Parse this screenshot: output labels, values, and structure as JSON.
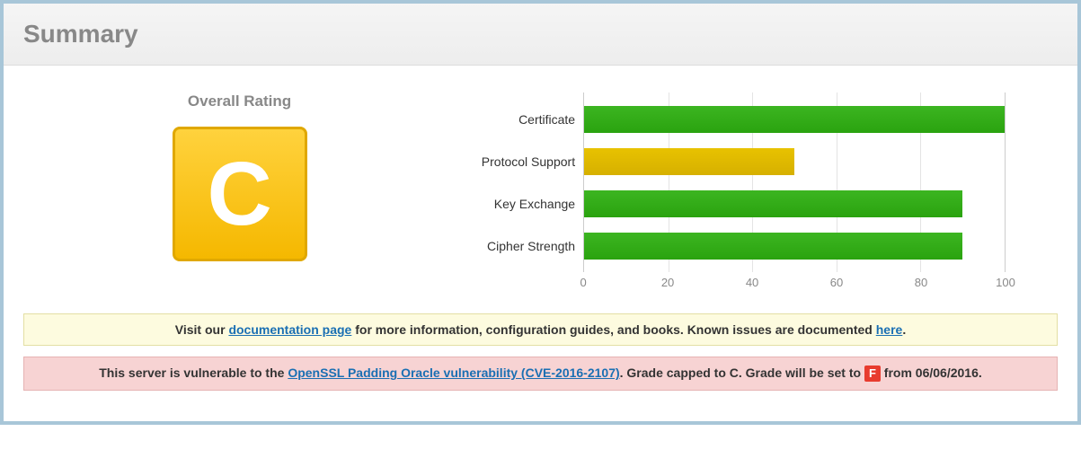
{
  "header": {
    "title": "Summary"
  },
  "rating": {
    "title": "Overall Rating",
    "grade": "C",
    "grade_bg_top": "#ffd23d",
    "grade_bg_bottom": "#f5b800",
    "grade_border": "#e0a800",
    "grade_text_color": "#ffffff"
  },
  "chart": {
    "type": "bar",
    "xlim": [
      0,
      100
    ],
    "ticks": [
      0,
      20,
      40,
      60,
      80,
      100
    ],
    "grid_color": "#e4e4e4",
    "axis_color": "#cccccc",
    "rows": [
      {
        "label": "Certificate",
        "value": 100,
        "color": "#3cb521"
      },
      {
        "label": "Protocol Support",
        "value": 50,
        "color": "#e8c200"
      },
      {
        "label": "Key Exchange",
        "value": 90,
        "color": "#3cb521"
      },
      {
        "label": "Cipher Strength",
        "value": 90,
        "color": "#3cb521"
      }
    ]
  },
  "notices": {
    "info": {
      "t1": "Visit our ",
      "link1_text": "documentation page",
      "t2": " for more information, configuration guides, and books. Known issues are documented ",
      "link2_text": "here",
      "t3": "."
    },
    "warn": {
      "t1": "This server is vulnerable to the ",
      "link_text": "OpenSSL Padding Oracle vulnerability (CVE-2016-2107)",
      "t2": ". Grade capped to C. Grade will be set to ",
      "badge": "F",
      "t3": " from 06/06/2016."
    }
  }
}
